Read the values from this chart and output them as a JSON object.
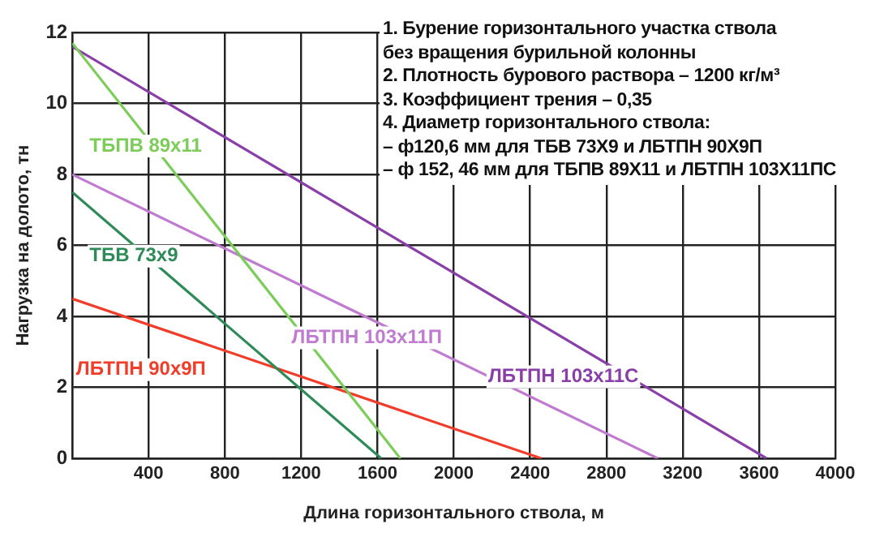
{
  "chart_data": {
    "type": "line",
    "xlabel": "Длина горизонтального ствола, м",
    "ylabel": "Нагрузка на долото, тн",
    "xlim": [
      0,
      4000
    ],
    "xticks": [
      {
        "value": 0,
        "label": null
      },
      400,
      800,
      1200,
      1600,
      2000,
      2400,
      2800,
      3200,
      3600,
      4000
    ],
    "ylim": [
      0,
      12
    ],
    "yticks": [
      0,
      2,
      4,
      6,
      8,
      10,
      12
    ],
    "grid": true,
    "legend": false,
    "marker": "none",
    "line_style": "solid",
    "series": [
      {
        "name": "ТБПВ 89x11",
        "color": "#7ccc5a",
        "x": [
          0,
          1720
        ],
        "values": [
          11.7,
          0
        ]
      },
      {
        "name": "ТБВ 73x9",
        "color": "#2e8b57",
        "x": [
          0,
          1620
        ],
        "values": [
          7.5,
          0
        ]
      },
      {
        "name": "ЛБТПН 90x9П",
        "color": "#f03c28",
        "x": [
          0,
          2460
        ],
        "values": [
          4.5,
          0
        ]
      },
      {
        "name": "ЛБТПН 103x11П",
        "color": "#c07ad0",
        "x": [
          0,
          3070
        ],
        "values": [
          8,
          0
        ]
      },
      {
        "name": "ЛБТПН 103x11С",
        "color": "#8a3fa8",
        "x": [
          0,
          3640
        ],
        "values": [
          11.6,
          0
        ]
      }
    ],
    "annotations": [
      "1. Бурение горизонтального участка ствола",
      "без вращения бурильной колонны",
      "2. Плотность бурового раствора – 1200 кг/м³",
      "3. Коэффициент трения – 0,35",
      "4. Диаметр горизонтального ствола:",
      "– ф120,6 мм для ТБВ 73Х9 и ЛБТПН 90Х9П",
      "– ф 152, 46 мм для  ТБПВ 89Х11 и ЛБТПН 103Х11ПС"
    ]
  }
}
